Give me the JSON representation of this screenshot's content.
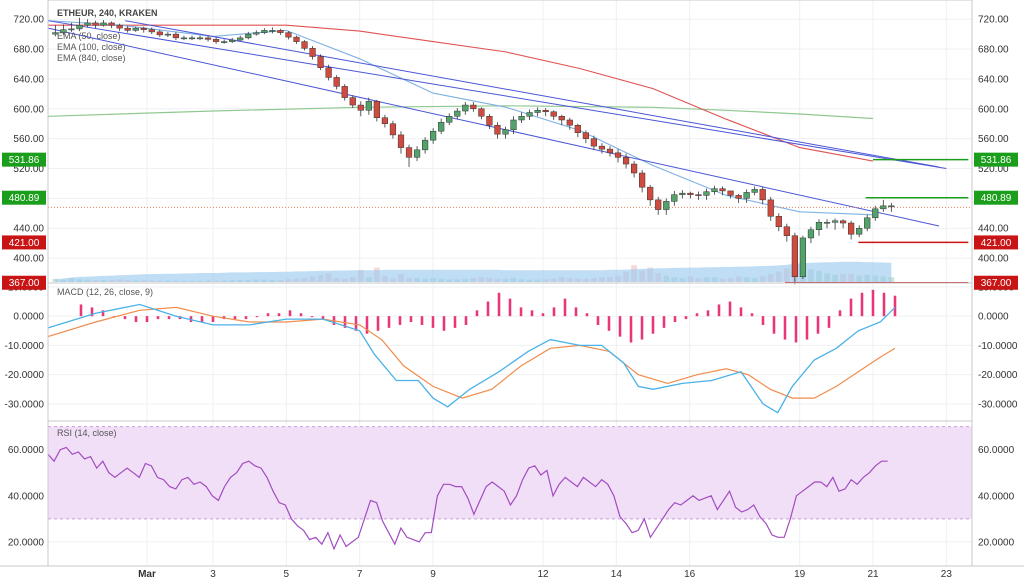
{
  "chart_data": [
    {
      "type": "candlestick",
      "title": "ETHEUR, 240, KRAKEN",
      "legend": [
        "EMA (50, close)",
        "EMA (100, close)",
        "EMA (840, close)"
      ],
      "yticks": [
        "720.00",
        "680.00",
        "640.00",
        "600.00",
        "560.00",
        "520.00",
        "480.00",
        "440.00",
        "400.00"
      ],
      "ylim": [
        368,
        735
      ],
      "xticks": [
        {
          "label": "Mar",
          "x": 0.1
        },
        {
          "label": "3",
          "x": 1.0
        },
        {
          "label": "5",
          "x": 2.0
        },
        {
          "label": "7",
          "x": 3.0
        },
        {
          "label": "9",
          "x": 4.0
        },
        {
          "label": "12",
          "x": 5.5
        },
        {
          "label": "14",
          "x": 6.5
        },
        {
          "label": "16",
          "x": 7.5
        },
        {
          "label": "19",
          "x": 9.0
        },
        {
          "label": "21",
          "x": 10.0
        },
        {
          "label": "23",
          "x": 11.0
        }
      ],
      "xlim": [
        -1.25,
        11.35
      ],
      "close": [
        702,
        706,
        707,
        712,
        715,
        712,
        715,
        712,
        708,
        705,
        708,
        706,
        703,
        699,
        700,
        695,
        695,
        695,
        695,
        693,
        690,
        690,
        692,
        695,
        700,
        702,
        705,
        705,
        702,
        696,
        690,
        681,
        670,
        655,
        642,
        630,
        615,
        605,
        598,
        610,
        588,
        580,
        565,
        548,
        535,
        545,
        558,
        570,
        582,
        590,
        597,
        605,
        600,
        590,
        578,
        566,
        572,
        585,
        590,
        595,
        598,
        596,
        590,
        585,
        578,
        568,
        560,
        550,
        546,
        541,
        535,
        526,
        514,
        495,
        478,
        465,
        476,
        485,
        487,
        485,
        484,
        489,
        493,
        490,
        484,
        480,
        488,
        492,
        478,
        456,
        442,
        430,
        375,
        427,
        438,
        448,
        448,
        450,
        447,
        432,
        440,
        454,
        466,
        470,
        470
      ],
      "open": [
        700,
        702,
        706,
        707,
        712,
        715,
        712,
        715,
        712,
        708,
        705,
        708,
        706,
        703,
        699,
        700,
        695,
        695,
        695,
        695,
        693,
        690,
        690,
        692,
        695,
        700,
        702,
        705,
        705,
        702,
        696,
        690,
        681,
        670,
        655,
        642,
        630,
        615,
        605,
        598,
        610,
        588,
        580,
        565,
        548,
        535,
        545,
        558,
        570,
        582,
        590,
        597,
        605,
        600,
        590,
        578,
        566,
        572,
        585,
        590,
        595,
        598,
        596,
        590,
        585,
        578,
        568,
        560,
        550,
        546,
        541,
        535,
        526,
        514,
        495,
        478,
        465,
        476,
        485,
        487,
        485,
        484,
        489,
        493,
        490,
        484,
        480,
        488,
        492,
        478,
        456,
        442,
        430,
        375,
        427,
        438,
        448,
        448,
        450,
        447,
        432,
        440,
        454,
        466,
        470
      ],
      "high": [
        712,
        713,
        715,
        722,
        720,
        718,
        719,
        717,
        714,
        711,
        710,
        710,
        709,
        706,
        703,
        703,
        698,
        698,
        698,
        698,
        696,
        693,
        695,
        698,
        703,
        705,
        708,
        709,
        707,
        704,
        698,
        692,
        684,
        673,
        659,
        645,
        633,
        618,
        610,
        615,
        612,
        592,
        584,
        570,
        552,
        550,
        562,
        574,
        587,
        594,
        601,
        609,
        609,
        602,
        593,
        582,
        576,
        590,
        595,
        599,
        602,
        601,
        598,
        592,
        588,
        580,
        571,
        564,
        554,
        550,
        546,
        540,
        530,
        518,
        498,
        482,
        480,
        490,
        491,
        489,
        489,
        493,
        497,
        496,
        490,
        486,
        492,
        496,
        496,
        482,
        460,
        446,
        434,
        430,
        442,
        452,
        452,
        453,
        452,
        450,
        444,
        458,
        470,
        478,
        474
      ],
      "low": [
        697,
        699,
        703,
        704,
        709,
        708,
        710,
        708,
        704,
        702,
        703,
        702,
        700,
        696,
        696,
        692,
        692,
        692,
        692,
        690,
        687,
        687,
        688,
        691,
        693,
        698,
        700,
        701,
        699,
        693,
        687,
        678,
        666,
        652,
        638,
        626,
        611,
        601,
        590,
        592,
        583,
        575,
        560,
        540,
        522,
        530,
        540,
        553,
        566,
        578,
        586,
        592,
        596,
        586,
        573,
        560,
        560,
        566,
        581,
        585,
        590,
        590,
        585,
        578,
        572,
        562,
        554,
        545,
        540,
        536,
        528,
        520,
        508,
        488,
        470,
        458,
        458,
        470,
        480,
        480,
        478,
        478,
        485,
        484,
        480,
        474,
        474,
        484,
        472,
        450,
        436,
        422,
        365,
        372,
        420,
        430,
        440,
        438,
        440,
        425,
        428,
        436,
        450,
        462,
        462
      ],
      "ema50": {
        "x": [
          -1.25,
          -0.25,
          1.0,
          2.0,
          3.0,
          4.0,
          5.0,
          6.0,
          7.0,
          8.0,
          9.0,
          10.0
        ],
        "y": [
          718,
          712,
          697,
          705,
          667,
          621,
          602,
          571,
          524,
          484,
          462,
          458
        ]
      },
      "ema100": {
        "x": [
          -1.25,
          0.0,
          1.0,
          2.0,
          3.0,
          4.0,
          5.0,
          6.0,
          7.0,
          8.0,
          9.0,
          10.0
        ],
        "y": [
          712,
          712,
          712,
          712,
          704,
          690,
          676,
          654,
          627,
          586,
          548,
          530
        ]
      },
      "ema840": {
        "x": [
          -1.25,
          1.0,
          3.0,
          5.0,
          7.0,
          8.0,
          9.0,
          10.0
        ],
        "y": [
          590,
          597,
          602,
          604,
          602,
          598,
          593,
          587
        ]
      },
      "trendlines": [
        {
          "x": [
            -1.25,
            10.9
          ],
          "y": [
            708,
            443
          ]
        },
        {
          "x": [
            -0.2,
            10.9
          ],
          "y": [
            718,
            522
          ]
        },
        {
          "x": [
            -1.25,
            11.0
          ],
          "y": [
            718,
            520
          ]
        }
      ],
      "support_resistance": [
        {
          "label": "531.86",
          "color": "#1b9e1b",
          "x": [
            10.0,
            11.3
          ],
          "y": 531.86
        },
        {
          "label": "480.89",
          "color": "#1b9e1b",
          "x": [
            9.9,
            11.3
          ],
          "y": 480.89
        },
        {
          "label": "421.00",
          "color": "#c81414",
          "x": [
            9.8,
            11.3
          ],
          "y": 421.0
        },
        {
          "label": "367.00",
          "color": "#c81414",
          "x": [
            8.8,
            11.3
          ],
          "y": 367.0
        }
      ],
      "last_price_line": 468,
      "volume": [
        0.08,
        0.06,
        0.1,
        0.07,
        0.06,
        0.05,
        0.05,
        0.05,
        0.06,
        0.05,
        0.04,
        0.05,
        0.04,
        0.03,
        0.04,
        0.03,
        0.03,
        0.03,
        0.03,
        0.04,
        0.03,
        0.04,
        0.05,
        0.05,
        0.05,
        0.06,
        0.06,
        0.05,
        0.05,
        0.07,
        0.08,
        0.1,
        0.14,
        0.18,
        0.22,
        0.1,
        0.08,
        0.12,
        0.3,
        0.12,
        0.36,
        0.15,
        0.08,
        0.2,
        0.1,
        0.1,
        0.08,
        0.1,
        0.08,
        0.07,
        0.07,
        0.08,
        0.1,
        0.12,
        0.1,
        0.08,
        0.08,
        0.1,
        0.07,
        0.06,
        0.06,
        0.07,
        0.08,
        0.12,
        0.1,
        0.08,
        0.08,
        0.1,
        0.12,
        0.12,
        0.16,
        0.26,
        0.42,
        0.28,
        0.36,
        0.22,
        0.16,
        0.12,
        0.1,
        0.14,
        0.1,
        0.12,
        0.12,
        0.08,
        0.1,
        0.14,
        0.12,
        0.1,
        0.14,
        0.2,
        0.26,
        0.34,
        0.82,
        0.56,
        0.32,
        0.28,
        0.22,
        0.18,
        0.2,
        0.2,
        0.16,
        0.18,
        0.16,
        0.14,
        0.12
      ],
      "volume_ma": [
        0.08,
        0.11,
        0.14,
        0.16,
        0.17,
        0.18,
        0.19,
        0.2,
        0.21,
        0.22,
        0.23,
        0.24,
        0.25,
        0.25,
        0.26,
        0.26,
        0.27,
        0.27,
        0.28,
        0.28,
        0.28,
        0.29,
        0.3,
        0.3,
        0.3,
        0.31,
        0.31,
        0.31,
        0.32,
        0.32,
        0.33,
        0.33,
        0.34,
        0.35,
        0.35,
        0.36,
        0.36,
        0.37,
        0.37,
        0.37,
        0.37,
        0.38,
        0.38,
        0.38,
        0.38,
        0.38,
        0.38,
        0.38,
        0.38,
        0.38,
        0.38,
        0.38,
        0.38,
        0.38,
        0.38,
        0.38,
        0.37,
        0.37,
        0.37,
        0.37,
        0.37,
        0.37,
        0.37,
        0.37,
        0.37,
        0.37,
        0.37,
        0.37,
        0.37,
        0.38,
        0.38,
        0.39,
        0.4,
        0.41,
        0.42,
        0.43,
        0.43,
        0.44,
        0.44,
        0.45,
        0.45,
        0.46,
        0.46,
        0.47,
        0.47,
        0.48,
        0.48,
        0.49,
        0.5,
        0.51,
        0.52,
        0.54,
        0.57,
        0.59,
        0.6,
        0.61,
        0.62,
        0.62,
        0.63,
        0.63,
        0.63,
        0.62,
        0.62,
        0.61,
        0.6
      ]
    },
    {
      "type": "line",
      "title": "MACD (12, 26, close, 9)",
      "yticks": [
        "10.0000",
        "0.0000",
        "-10.0000",
        "-20.0000",
        "-30.0000"
      ],
      "ylim": [
        -35.5,
        11
      ],
      "macd": {
        "x": [
          -1.25,
          -0.6,
          0,
          0.5,
          1,
          1.5,
          2,
          2.5,
          3,
          3.2,
          3.5,
          3.8,
          4,
          4.2,
          4.5,
          4.9,
          5.3,
          5.6,
          6,
          6.3,
          6.6,
          6.8,
          7,
          7.4,
          7.8,
          8.2,
          8.5,
          8.7,
          8.9,
          9.2,
          9.5,
          9.8,
          10.1,
          10.3
        ],
        "y": [
          -4,
          1,
          4,
          0,
          -3,
          -3,
          -1,
          -1,
          -5,
          -13,
          -22,
          -22,
          -28,
          -31,
          -25,
          -19,
          -12,
          -8,
          -10,
          -10,
          -16,
          -24,
          -25,
          -23,
          -22,
          -19,
          -30,
          -33,
          -24,
          -15,
          -11,
          -5,
          -2,
          3
        ]
      },
      "signal": {
        "x": [
          -1.25,
          -0.6,
          0,
          0.5,
          1,
          1.5,
          2,
          2.5,
          3,
          3.3,
          3.6,
          4,
          4.4,
          4.8,
          5.2,
          5.6,
          6,
          6.4,
          6.8,
          7.2,
          7.6,
          8,
          8.3,
          8.6,
          8.9,
          9.2,
          9.5,
          9.8,
          10.1,
          10.3
        ],
        "y": [
          -7,
          -2,
          2,
          3,
          0,
          -2,
          -2,
          -1,
          -3,
          -8,
          -17,
          -24,
          -28,
          -25,
          -17,
          -11,
          -10,
          -12,
          -20,
          -23,
          -20,
          -18,
          -20,
          -25,
          -28,
          -28,
          -24,
          -19,
          -14,
          -11
        ]
      },
      "hist_x": [
        -0.8,
        -0.65,
        -0.5,
        -0.35,
        -0.2,
        -0.05,
        0.1,
        0.25,
        0.4,
        0.55,
        0.7,
        0.85,
        1.0,
        1.15,
        1.3,
        1.45,
        1.6,
        1.75,
        1.9,
        2.05,
        2.2,
        2.35,
        2.5,
        2.65,
        2.8,
        2.95,
        3.1,
        3.25,
        3.4,
        3.55,
        3.7,
        3.85,
        4.0,
        4.15,
        4.3,
        4.45,
        4.6,
        4.75,
        4.9,
        5.05,
        5.2,
        5.35,
        5.5,
        5.65,
        5.8,
        5.95,
        6.1,
        6.25,
        6.4,
        6.55,
        6.7,
        6.85,
        7.0,
        7.15,
        7.3,
        7.45,
        7.6,
        7.75,
        7.9,
        8.05,
        8.2,
        8.35,
        8.5,
        8.65,
        8.8,
        8.95,
        9.1,
        9.25,
        9.4,
        9.55,
        9.7,
        9.85,
        10.0,
        10.15,
        10.3
      ],
      "histogram": [
        4,
        3,
        2,
        0,
        -1,
        -2,
        -2,
        -1,
        -1,
        -1,
        -2,
        -2,
        -2,
        -1,
        -1,
        -1,
        0,
        1,
        1,
        2,
        1,
        0,
        -1,
        -3,
        -4,
        -5,
        -6,
        -5,
        -4,
        -3,
        -2,
        -3,
        -4,
        -5,
        -4,
        -3,
        2,
        5,
        8,
        6,
        3,
        2,
        1,
        3,
        6,
        3,
        1,
        -3,
        -5,
        -7,
        -9,
        -8,
        -6,
        -4,
        -2,
        -1,
        1,
        2,
        4,
        5,
        3,
        1,
        -3,
        -6,
        -8,
        -9,
        -8,
        -6,
        -4,
        2,
        6,
        8,
        9,
        8,
        7
      ]
    },
    {
      "type": "line",
      "title": "RSI (14, close)",
      "yticks": [
        "60.0000",
        "40.0000",
        "20.0000"
      ],
      "ylim": [
        10,
        72
      ],
      "band": [
        30,
        70
      ],
      "rsi": [
        58,
        55,
        60,
        61,
        58,
        59,
        56,
        57,
        52,
        55,
        50,
        48,
        50,
        52,
        50,
        48,
        54,
        53,
        48,
        47,
        44,
        43,
        47,
        48,
        45,
        46,
        44,
        40,
        38,
        44,
        48,
        50,
        54,
        55,
        53,
        52,
        48,
        42,
        37,
        36,
        30,
        27,
        25,
        21,
        22,
        19,
        24,
        17,
        23,
        18,
        20,
        22,
        30,
        38,
        37,
        29,
        24,
        19,
        26,
        22,
        21,
        20,
        24,
        24,
        40,
        45,
        45,
        44,
        44,
        39,
        32,
        38,
        44,
        46,
        44,
        42,
        36,
        40,
        47,
        52,
        53,
        49,
        51,
        40,
        45,
        48,
        46,
        44,
        48,
        46,
        44,
        47,
        45,
        40,
        31,
        28,
        24,
        25,
        30,
        22,
        26,
        30,
        34,
        37,
        36,
        38,
        40,
        38,
        39,
        40,
        34,
        38,
        42,
        35,
        33,
        34,
        36,
        31,
        28,
        23,
        22,
        22,
        30,
        40,
        42,
        44,
        46,
        46,
        44,
        48,
        42,
        43,
        47,
        45,
        48,
        50,
        53,
        55,
        55
      ]
    }
  ],
  "xaxis": [
    "Mar",
    "3",
    "5",
    "7",
    "9",
    "12",
    "14",
    "16",
    "19",
    "21",
    "23"
  ]
}
